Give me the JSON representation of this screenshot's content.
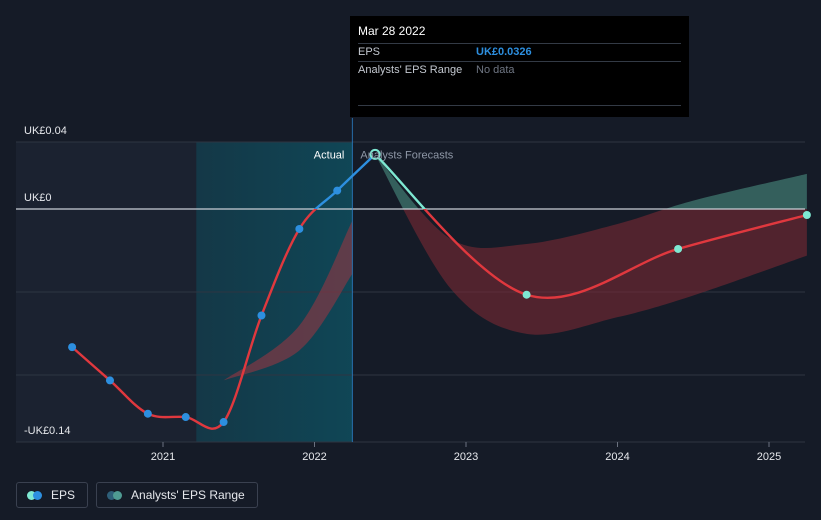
{
  "chart_data": {
    "type": "line",
    "title": "",
    "y_axis_labels": [
      "UK£0.04",
      "UK£0",
      "-UK£0.14"
    ],
    "x_tick_labels": [
      "2021",
      "2022",
      "2023",
      "2024",
      "2025"
    ],
    "xlim": [
      2020.2,
      2025.25
    ],
    "ylim": [
      -0.14,
      0.04
    ],
    "annotations": {
      "actual": "Actual",
      "forecast": "Analysts Forecasts"
    },
    "divider_x": 2022.25,
    "shaded_start_x": 2021.22,
    "series": [
      {
        "name": "EPS (actual)",
        "color_low": "#e0383e",
        "color_high": "#2d8fdf",
        "points": [
          {
            "x": 2020.4,
            "y": -0.083
          },
          {
            "x": 2020.65,
            "y": -0.103
          },
          {
            "x": 2020.9,
            "y": -0.123
          },
          {
            "x": 2021.15,
            "y": -0.125
          },
          {
            "x": 2021.4,
            "y": -0.128
          },
          {
            "x": 2021.65,
            "y": -0.064
          },
          {
            "x": 2021.9,
            "y": -0.012
          },
          {
            "x": 2022.15,
            "y": 0.011
          },
          {
            "x": 2022.4,
            "y": 0.0326
          }
        ]
      },
      {
        "name": "EPS (forecast)",
        "color_low": "#e0383e",
        "color_high": "#7ee8d2",
        "points": [
          {
            "x": 2022.4,
            "y": 0.0326
          },
          {
            "x": 2023.4,
            "y": -0.0515
          },
          {
            "x": 2024.4,
            "y": -0.024
          },
          {
            "x": 2025.25,
            "y": -0.0036
          }
        ]
      }
    ],
    "forecast_range": {
      "name": "Analysts' EPS Range",
      "x": [
        2022.4,
        2022.9,
        2023.4,
        2024.0,
        2024.5,
        2025.25
      ],
      "high": [
        0.0326,
        -0.018,
        -0.021,
        -0.009,
        0.005,
        0.021
      ],
      "low": [
        0.0326,
        -0.048,
        -0.075,
        -0.065,
        -0.052,
        -0.028
      ]
    },
    "past_range": {
      "x": [
        2021.4,
        2021.9,
        2022.25
      ],
      "high": [
        -0.103,
        -0.07,
        -0.007
      ],
      "low": [
        -0.103,
        -0.085,
        -0.039
      ]
    }
  },
  "tooltip": {
    "date": "Mar 28 2022",
    "eps_label": "EPS",
    "eps_value": "UK£0.0326",
    "range_label": "Analysts' EPS Range",
    "range_value": "No data"
  },
  "legend": {
    "eps_label": "EPS",
    "range_label": "Analysts' EPS Range",
    "eps_colors": [
      "#7ee8d2",
      "#2d8fdf"
    ],
    "range_colors": [
      "#4f9b93",
      "#2e5f79"
    ]
  }
}
